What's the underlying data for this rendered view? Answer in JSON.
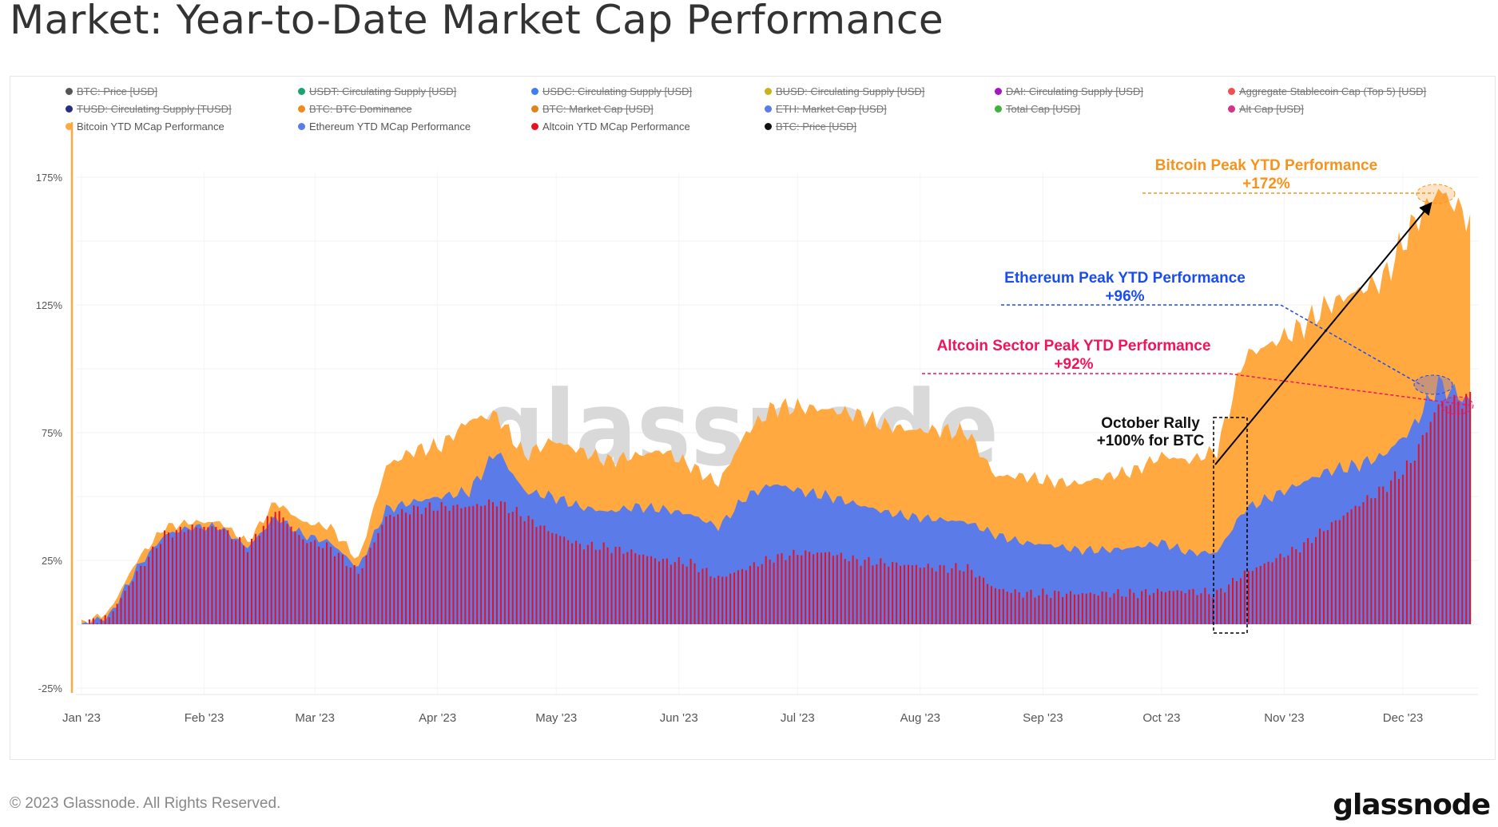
{
  "title": "Market: Year-to-Date Market Cap Performance",
  "legend": [
    {
      "label": "BTC: Price [USD]",
      "color": "#555555",
      "active": false
    },
    {
      "label": "USDT: Circulating Supply [USD]",
      "color": "#1aa36f",
      "active": false
    },
    {
      "label": "USDC: Circulating Supply [USD]",
      "color": "#3d7ef0",
      "active": false
    },
    {
      "label": "BUSD: Circulating Supply [USD]",
      "color": "#c9b21a",
      "active": false
    },
    {
      "label": "DAI: Circulating Supply [USD]",
      "color": "#a616c2",
      "active": false
    },
    {
      "label": "Aggregate Stablecoin Cap (Top 5) [USD]",
      "color": "#f05050",
      "active": false
    },
    {
      "label": "TUSD: Circulating Supply [TUSD]",
      "color": "#27307a",
      "active": false
    },
    {
      "label": "BTC: BTC Dominance",
      "color": "#f08a1e",
      "active": false
    },
    {
      "label": "BTC: Market Cap [USD]",
      "color": "#e0821e",
      "active": false
    },
    {
      "label": "ETH: Market Cap [USD]",
      "color": "#5b7be8",
      "active": false
    },
    {
      "label": "Total Cap [USD]",
      "color": "#3fb33f",
      "active": false
    },
    {
      "label": "Alt Cap [USD]",
      "color": "#d63384",
      "active": false
    },
    {
      "label": "Bitcoin YTD MCap Performance",
      "color": "#ffa940",
      "active": true
    },
    {
      "label": "Ethereum YTD MCap Performance",
      "color": "#5b7be8",
      "active": true
    },
    {
      "label": "Altcoin YTD MCap Performance",
      "color": "#e8111e",
      "active": true
    },
    {
      "label": "BTC: Price [USD]",
      "color": "#111111",
      "active": false
    }
  ],
  "chart_data": {
    "type": "area",
    "x_unit": "week starting",
    "x": [
      "2023-01-01",
      "2023-01-08",
      "2023-01-15",
      "2023-01-22",
      "2023-01-29",
      "2023-02-05",
      "2023-02-12",
      "2023-02-19",
      "2023-02-26",
      "2023-03-05",
      "2023-03-12",
      "2023-03-19",
      "2023-03-26",
      "2023-04-02",
      "2023-04-09",
      "2023-04-16",
      "2023-04-23",
      "2023-04-30",
      "2023-05-07",
      "2023-05-14",
      "2023-05-21",
      "2023-05-28",
      "2023-06-04",
      "2023-06-11",
      "2023-06-18",
      "2023-06-25",
      "2023-07-02",
      "2023-07-09",
      "2023-07-16",
      "2023-07-23",
      "2023-07-30",
      "2023-08-06",
      "2023-08-13",
      "2023-08-20",
      "2023-08-27",
      "2023-09-03",
      "2023-09-10",
      "2023-09-17",
      "2023-09-24",
      "2023-10-01",
      "2023-10-08",
      "2023-10-15",
      "2023-10-22",
      "2023-10-29",
      "2023-11-05",
      "2023-11-12",
      "2023-11-19",
      "2023-11-26",
      "2023-12-03",
      "2023-12-10",
      "2023-12-17"
    ],
    "series": [
      {
        "name": "Bitcoin YTD MCap Performance",
        "color": "#ffa940",
        "values": [
          0,
          5,
          25,
          38,
          40,
          40,
          32,
          48,
          40,
          38,
          25,
          62,
          68,
          70,
          80,
          82,
          66,
          72,
          68,
          64,
          66,
          68,
          62,
          55,
          75,
          85,
          85,
          84,
          82,
          78,
          76,
          76,
          75,
          58,
          58,
          56,
          55,
          58,
          60,
          66,
          64,
          68,
          105,
          110,
          116,
          125,
          130,
          135,
          155,
          170,
          160
        ]
      },
      {
        "name": "Ethereum YTD MCap Performance",
        "color": "#5b7be8",
        "values": [
          0,
          3,
          22,
          35,
          38,
          38,
          30,
          42,
          35,
          32,
          22,
          45,
          48,
          50,
          52,
          68,
          52,
          50,
          46,
          44,
          46,
          45,
          43,
          38,
          50,
          55,
          52,
          50,
          47,
          44,
          42,
          41,
          40,
          35,
          32,
          31,
          29,
          29,
          30,
          32,
          28,
          28,
          45,
          50,
          55,
          60,
          62,
          66,
          76,
          94,
          88
        ]
      },
      {
        "name": "Altcoin YTD MCap Performance",
        "color": "#e8111e",
        "values": [
          0,
          3,
          20,
          35,
          38,
          38,
          30,
          45,
          33,
          30,
          20,
          42,
          45,
          46,
          46,
          48,
          42,
          36,
          31,
          30,
          28,
          25,
          24,
          18,
          22,
          26,
          28,
          28,
          25,
          24,
          23,
          22,
          22,
          14,
          12,
          12,
          12,
          12,
          12,
          13,
          13,
          12,
          20,
          25,
          30,
          38,
          46,
          53,
          63,
          86,
          88
        ]
      }
    ],
    "yticks": [
      "-25%",
      "25%",
      "75%",
      "125%",
      "175%"
    ],
    "ylim": [
      -25,
      190
    ],
    "xticks": [
      "Jan '23",
      "Feb '23",
      "Mar '23",
      "Apr '23",
      "May '23",
      "Jun '23",
      "Jul '23",
      "Aug '23",
      "Sep '23",
      "Oct '23",
      "Nov '23",
      "Dec '23"
    ],
    "grid": true,
    "legend_position": "top",
    "annotations": {
      "btc_title": "Bitcoin Peak YTD Performance",
      "btc_value": "+172%",
      "btc_color": "#f7931a",
      "eth_title": "Ethereum Peak YTD Performance",
      "eth_value": "+96%",
      "eth_color": "#1a4cf0",
      "alt_title": "Altcoin Sector Peak YTD Performance",
      "alt_value": "+92%",
      "alt_color": "#f0145a",
      "oct_title": "October Rally",
      "oct_value": "+100% for BTC"
    }
  },
  "watermark": "glassnode",
  "footer": "© 2023 Glassnode. All Rights Reserved.",
  "logo": "glassnode"
}
